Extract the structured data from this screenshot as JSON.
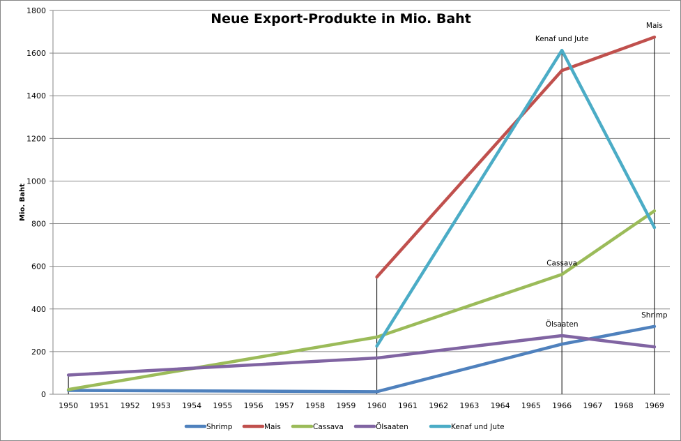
{
  "chart_data": {
    "type": "line",
    "title": "Neue Export-Produkte in Mio. Baht",
    "xlabel": "",
    "ylabel": "Mio. Baht",
    "ylim": [
      0,
      1800
    ],
    "yticks": [
      0,
      200,
      400,
      600,
      800,
      1000,
      1200,
      1400,
      1600,
      1800
    ],
    "categories": [
      "1950",
      "1951",
      "1952",
      "1953",
      "1954",
      "1955",
      "1956",
      "1957",
      "1958",
      "1959",
      "1960",
      "1961",
      "1962",
      "1963",
      "1964",
      "1965",
      "1966",
      "1967",
      "1968",
      "1969"
    ],
    "grid": true,
    "legend_position": "bottom",
    "series": [
      {
        "name": "Shrimp",
        "color": "#4F81BD",
        "points": {
          "1950": 18,
          "1960": 12,
          "1966": 235,
          "1969": 318
        }
      },
      {
        "name": "Mais",
        "color": "#C0504D",
        "points": {
          "1960": 550,
          "1966": 1518,
          "1969": 1675
        }
      },
      {
        "name": "Cassava",
        "color": "#9BBB59",
        "points": {
          "1950": 22,
          "1960": 268,
          "1966": 562,
          "1969": 860
        }
      },
      {
        "name": "Ölsaaten",
        "color": "#8064A2",
        "points": {
          "1950": 90,
          "1960": 170,
          "1966": 275,
          "1969": 222
        }
      },
      {
        "name": "Kenaf und Jute",
        "color": "#4BACC6",
        "points": {
          "1960": 226,
          "1966": 1613,
          "1969": 782
        }
      }
    ],
    "drop_lines": [
      "1950",
      "1960",
      "1966",
      "1969"
    ],
    "annotations": [
      {
        "text": "Kenaf und Jute",
        "category": "1966",
        "series": "Kenaf und Jute"
      },
      {
        "text": "Mais",
        "category": "1969",
        "series": "Mais"
      },
      {
        "text": "Cassava",
        "category": "1966",
        "series": "Cassava"
      },
      {
        "text": "Ölsaaten",
        "category": "1966",
        "series": "Ölsaaten"
      },
      {
        "text": "Shrimp",
        "category": "1969",
        "series": "Shrimp"
      }
    ]
  }
}
